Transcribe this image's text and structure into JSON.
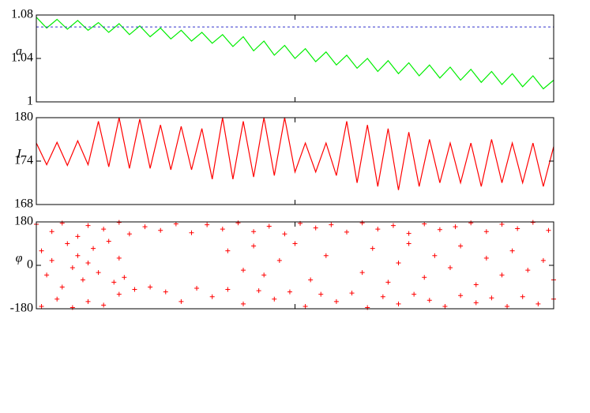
{
  "chart_data": [
    {
      "type": "line",
      "ylabel": "a",
      "color": "#00ee00",
      "x": [
        0,
        2,
        4,
        6,
        8,
        10,
        12,
        14,
        16,
        18,
        20,
        22,
        24,
        26,
        28,
        30,
        32,
        34,
        36,
        38,
        40,
        42,
        44,
        46,
        48,
        50,
        52,
        54,
        56,
        58,
        60,
        62,
        64,
        66,
        68,
        70,
        72,
        74,
        76,
        78,
        80,
        82,
        84,
        86,
        88,
        90,
        92,
        94,
        96,
        98,
        100
      ],
      "values": [
        1.078,
        1.068,
        1.076,
        1.067,
        1.075,
        1.066,
        1.073,
        1.064,
        1.072,
        1.062,
        1.07,
        1.06,
        1.068,
        1.058,
        1.066,
        1.056,
        1.064,
        1.054,
        1.062,
        1.051,
        1.06,
        1.047,
        1.056,
        1.043,
        1.052,
        1.04,
        1.049,
        1.037,
        1.046,
        1.034,
        1.043,
        1.031,
        1.04,
        1.028,
        1.038,
        1.026,
        1.036,
        1.024,
        1.034,
        1.022,
        1.032,
        1.02,
        1.03,
        1.018,
        1.028,
        1.016,
        1.026,
        1.014,
        1.024,
        1.012,
        1.02
      ],
      "xlim": [
        0,
        100
      ],
      "xticks": [
        50
      ],
      "ylim": [
        1,
        1.08
      ],
      "yticks": [
        1,
        1.04,
        1.08
      ],
      "ref_line": 1.069,
      "ref_color": "#3333cc"
    },
    {
      "type": "line",
      "ylabel": "I",
      "color": "#ff0000",
      "x": [
        0,
        2,
        4,
        6,
        8,
        10,
        12,
        14,
        16,
        18,
        20,
        22,
        24,
        26,
        28,
        30,
        32,
        34,
        36,
        38,
        40,
        42,
        44,
        46,
        48,
        50,
        52,
        54,
        56,
        58,
        60,
        62,
        64,
        66,
        68,
        70,
        72,
        74,
        76,
        78,
        80,
        82,
        84,
        86,
        88,
        90,
        92,
        94,
        96,
        98,
        100
      ],
      "values": [
        176.5,
        173.5,
        176.6,
        173.4,
        176.8,
        173.5,
        179.5,
        173.2,
        180,
        173,
        179.8,
        173,
        179,
        172.8,
        178.8,
        172.8,
        178.5,
        171.5,
        180,
        171.5,
        179.5,
        171.8,
        180,
        172,
        180,
        172.5,
        176.5,
        172.5,
        176.5,
        172,
        179.5,
        171,
        179,
        170.5,
        178.5,
        170,
        178,
        170.5,
        177,
        171,
        176.5,
        171,
        176.5,
        170.5,
        177,
        171,
        176.5,
        171,
        176.5,
        170.5,
        176
      ],
      "xlim": [
        0,
        100
      ],
      "xticks": [
        50
      ],
      "ylim": [
        168,
        180
      ],
      "yticks": [
        168,
        174,
        180
      ]
    },
    {
      "type": "scatter",
      "ylabel": "φ",
      "color": "#ff0000",
      "x": [
        0,
        3,
        5,
        8,
        10,
        13,
        16,
        18,
        21,
        24,
        27,
        30,
        33,
        36,
        39,
        42,
        45,
        48,
        51,
        54,
        57,
        60,
        63,
        66,
        69,
        72,
        75,
        78,
        81,
        84,
        87,
        90,
        93,
        96,
        99,
        1,
        4,
        7,
        10,
        13,
        16,
        19,
        22,
        25,
        28,
        31,
        34,
        37,
        40,
        43,
        46,
        49,
        52,
        55,
        58,
        61,
        64,
        67,
        70,
        73,
        76,
        79,
        82,
        85,
        88,
        91,
        94,
        97,
        100,
        1,
        2,
        3,
        5,
        6,
        7,
        8,
        9,
        10,
        11,
        12,
        14,
        15,
        16,
        17,
        37,
        40,
        42,
        44,
        47,
        50,
        53,
        56,
        63,
        65,
        68,
        70,
        72,
        75,
        77,
        80,
        82,
        85,
        87,
        90,
        92,
        95,
        98,
        100
      ],
      "values": [
        170,
        140,
        175,
        120,
        165,
        150,
        178,
        130,
        160,
        145,
        172,
        135,
        168,
        150,
        176,
        140,
        162,
        130,
        174,
        155,
        168,
        138,
        176,
        150,
        165,
        132,
        172,
        148,
        160,
        176,
        140,
        170,
        152,
        178,
        145,
        -170,
        -140,
        -175,
        -150,
        -165,
        -120,
        -100,
        -90,
        -110,
        -150,
        -95,
        -130,
        -100,
        -160,
        -105,
        -140,
        -110,
        -170,
        -120,
        -150,
        -115,
        -175,
        -130,
        -160,
        -120,
        -145,
        -170,
        -125,
        -155,
        -135,
        -170,
        -130,
        -160,
        -140,
        60,
        -40,
        20,
        -90,
        90,
        -10,
        40,
        -60,
        10,
        70,
        -30,
        100,
        -70,
        30,
        -50,
        60,
        -20,
        80,
        -40,
        20,
        90,
        -60,
        40,
        -30,
        70,
        -70,
        10,
        90,
        -50,
        40,
        -10,
        80,
        -80,
        30,
        -40,
        60,
        -20,
        20,
        -60
      ],
      "xlim": [
        0,
        100
      ],
      "xticks": [
        50
      ],
      "ylim": [
        -180,
        180
      ],
      "yticks": [
        -180,
        0,
        180
      ]
    }
  ]
}
